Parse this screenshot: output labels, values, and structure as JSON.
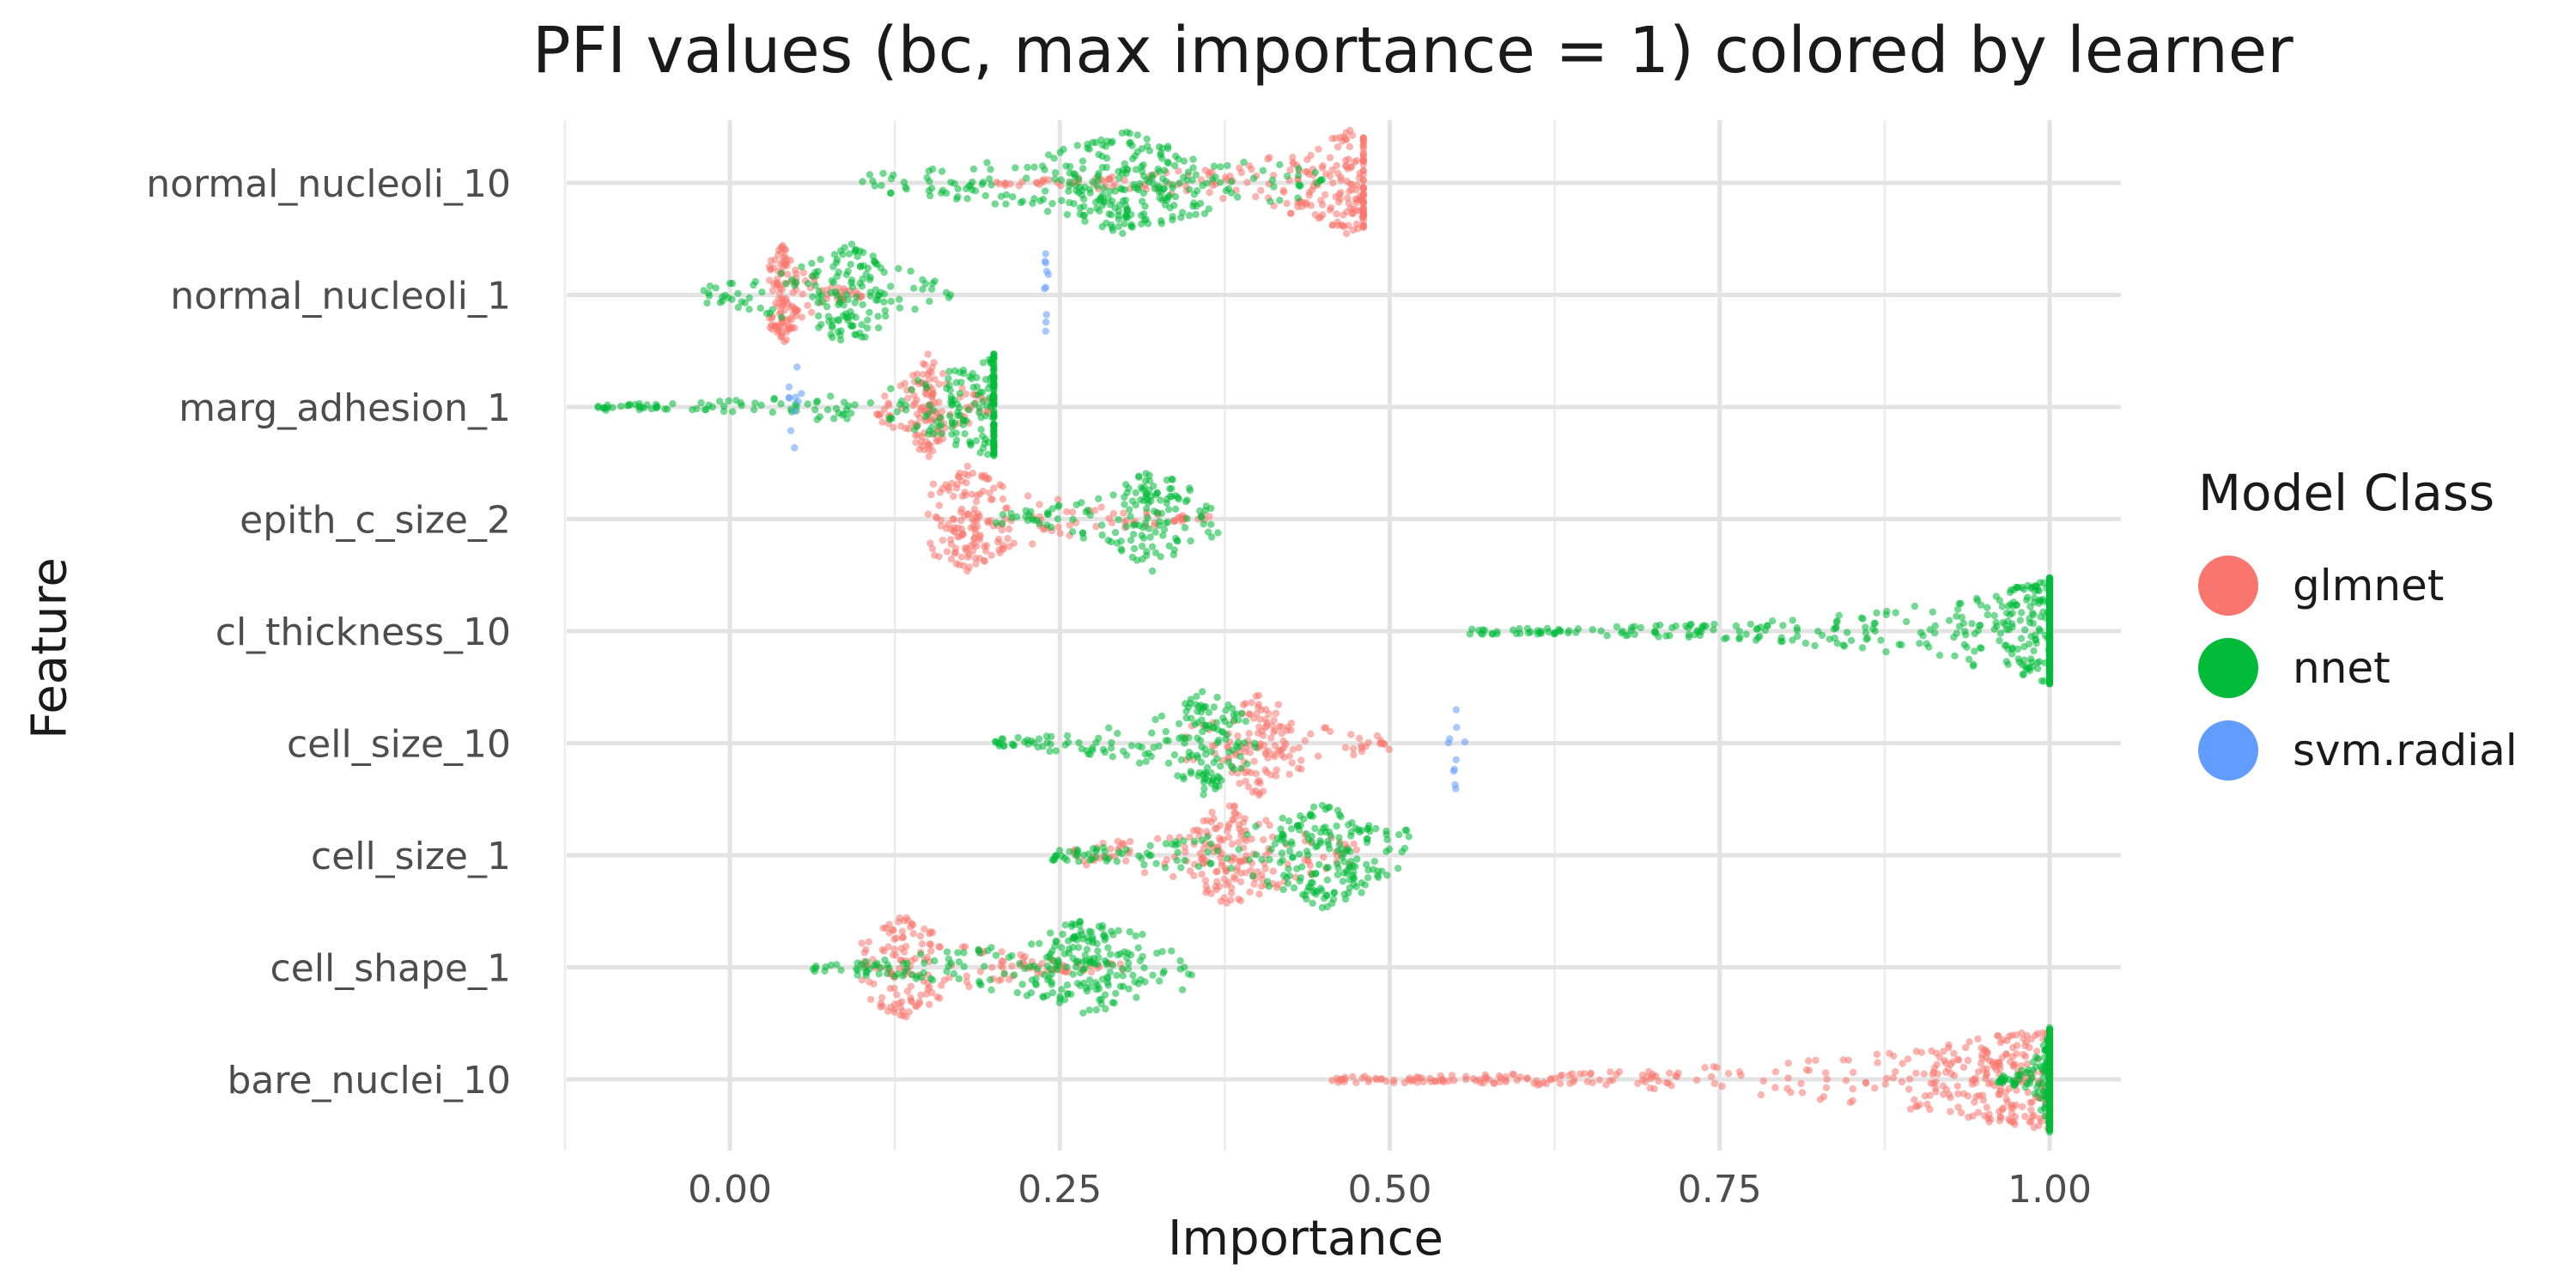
{
  "chart_data": {
    "type": "scatter",
    "subtype": "beeswarm",
    "title": "PFI values (bc, max importance = 1) colored by learner",
    "xlabel": "Importance",
    "ylabel": "Feature",
    "xlim": [
      -0.13,
      1.06
    ],
    "x_ticks": [
      "0.00",
      "0.25",
      "0.50",
      "0.75",
      "1.00"
    ],
    "x_tick_values": [
      0,
      0.25,
      0.5,
      0.75,
      1.0
    ],
    "categories": [
      "normal_nucleoli_10",
      "normal_nucleoli_1",
      "marg_adhesion_1",
      "epith_c_size_2",
      "cl_thickness_10",
      "cell_size_10",
      "cell_size_1",
      "cell_shape_1",
      "bare_nuclei_10"
    ],
    "grid": true,
    "legend": {
      "title": "Model Class",
      "placement": "right"
    },
    "series": [
      {
        "name": "glmnet",
        "color": "#F8766D",
        "values": [
          {
            "feature": "normal_nucleoli_10",
            "min": 0.2,
            "max": 0.48,
            "mode": 0.47
          },
          {
            "feature": "normal_nucleoli_1",
            "min": 0.03,
            "max": 0.1,
            "mode": 0.04
          },
          {
            "feature": "marg_adhesion_1",
            "min": 0.11,
            "max": 0.2,
            "mode": 0.15
          },
          {
            "feature": "epith_c_size_2",
            "min": 0.15,
            "max": 0.37,
            "mode": 0.18
          },
          {
            "feature": "cell_size_10",
            "min": 0.34,
            "max": 0.5,
            "mode": 0.4
          },
          {
            "feature": "cell_size_1",
            "min": 0.26,
            "max": 0.48,
            "mode": 0.38
          },
          {
            "feature": "cell_shape_1",
            "min": 0.1,
            "max": 0.3,
            "mode": 0.13
          },
          {
            "feature": "bare_nuclei_10",
            "min": 0.45,
            "max": 1.0,
            "mode": 0.99
          }
        ]
      },
      {
        "name": "nnet",
        "color": "#00BA38",
        "values": [
          {
            "feature": "normal_nucleoli_10",
            "min": 0.1,
            "max": 0.45,
            "mode": 0.3
          },
          {
            "feature": "normal_nucleoli_1",
            "min": -0.02,
            "max": 0.17,
            "mode": 0.09
          },
          {
            "feature": "marg_adhesion_1",
            "min": -0.1,
            "max": 0.2,
            "mode": 0.2
          },
          {
            "feature": "epith_c_size_2",
            "min": 0.2,
            "max": 0.37,
            "mode": 0.32
          },
          {
            "feature": "cl_thickness_10",
            "min": 0.56,
            "max": 1.0,
            "mode": 1.0
          },
          {
            "feature": "cell_size_10",
            "min": 0.2,
            "max": 0.4,
            "mode": 0.36
          },
          {
            "feature": "cell_size_1",
            "min": 0.24,
            "max": 0.52,
            "mode": 0.45
          },
          {
            "feature": "cell_shape_1",
            "min": 0.06,
            "max": 0.35,
            "mode": 0.27
          },
          {
            "feature": "bare_nuclei_10",
            "min": 0.96,
            "max": 1.0,
            "mode": 1.0
          }
        ]
      },
      {
        "name": "svm.radial",
        "color": "#619CFF",
        "values": [
          {
            "feature": "normal_nucleoli_1",
            "min": 0.235,
            "max": 0.245,
            "mode": 0.24
          },
          {
            "feature": "marg_adhesion_1",
            "min": 0.04,
            "max": 0.07,
            "mode": 0.05
          },
          {
            "feature": "cell_size_10",
            "min": 0.54,
            "max": 0.56,
            "mode": 0.55
          }
        ]
      }
    ]
  }
}
